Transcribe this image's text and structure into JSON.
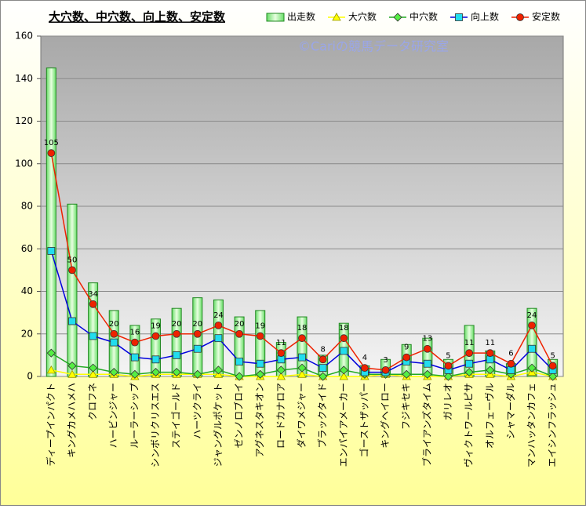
{
  "chart_data": {
    "type": "bar",
    "title": "大穴数、中穴数、向上数、安定数",
    "watermark": "©Cariの競馬データ研究室",
    "categories": [
      "ディープインパクト",
      "キングカメハメハ",
      "クロフネ",
      "ハービンジャー",
      "ルーラーシップ",
      "シンボリクリスエス",
      "ステイゴールド",
      "ハーツクライ",
      "ジャングルポケット",
      "ゼンノロブロイ",
      "アグネスタキオン",
      "ロードカナロア",
      "ダイワメジャー",
      "ブラックタイド",
      "エンパイアメーカー",
      "ゴーストザッパー",
      "キングヘイロー",
      "フジキセキ",
      "ブライアンズタイム",
      "ガリレオ",
      "ヴィクトワールピサ",
      "オルフェーヴル",
      "シャマーダル",
      "マンハッタンカフェ",
      "エイシンフラッシュ"
    ],
    "series": [
      {
        "name": "出走数",
        "type": "bar",
        "color": "#66dd66",
        "values": [
          145,
          81,
          44,
          31,
          24,
          27,
          32,
          37,
          36,
          28,
          31,
          16,
          28,
          10,
          25,
          5,
          8,
          15,
          18,
          8,
          24,
          12,
          6,
          32,
          8
        ]
      },
      {
        "name": "大穴数",
        "type": "line",
        "marker": "triangle",
        "color": "#ffff00",
        "values": [
          3,
          1,
          1,
          1,
          0,
          1,
          1,
          1,
          1,
          0,
          0,
          0,
          1,
          0,
          0,
          0,
          1,
          0,
          0,
          0,
          1,
          1,
          0,
          2,
          0
        ]
      },
      {
        "name": "中穴数",
        "type": "line",
        "marker": "diamond",
        "color": "#22aa22",
        "values": [
          11,
          5,
          4,
          2,
          1,
          2,
          2,
          1,
          3,
          0,
          1,
          3,
          4,
          0,
          3,
          1,
          1,
          1,
          1,
          0,
          2,
          3,
          1,
          4,
          0
        ]
      },
      {
        "name": "向上数",
        "type": "line",
        "marker": "square",
        "color": "#0000dd",
        "values": [
          59,
          26,
          19,
          16,
          9,
          8,
          10,
          13,
          18,
          7,
          6,
          8,
          9,
          4,
          12,
          2,
          2,
          7,
          6,
          3,
          6,
          8,
          3,
          13,
          3
        ]
      },
      {
        "name": "安定数",
        "type": "line",
        "marker": "circle",
        "color": "#ee2200",
        "labels": true,
        "values": [
          105,
          50,
          34,
          20,
          16,
          19,
          20,
          20,
          24,
          20,
          19,
          11,
          18,
          8,
          18,
          4,
          3,
          9,
          13,
          5,
          11,
          11,
          6,
          24,
          5
        ]
      }
    ],
    "ylim": [
      0,
      160
    ],
    "yticks": [
      0,
      20,
      40,
      60,
      80,
      100,
      120,
      140,
      160
    ],
    "grid": true
  }
}
